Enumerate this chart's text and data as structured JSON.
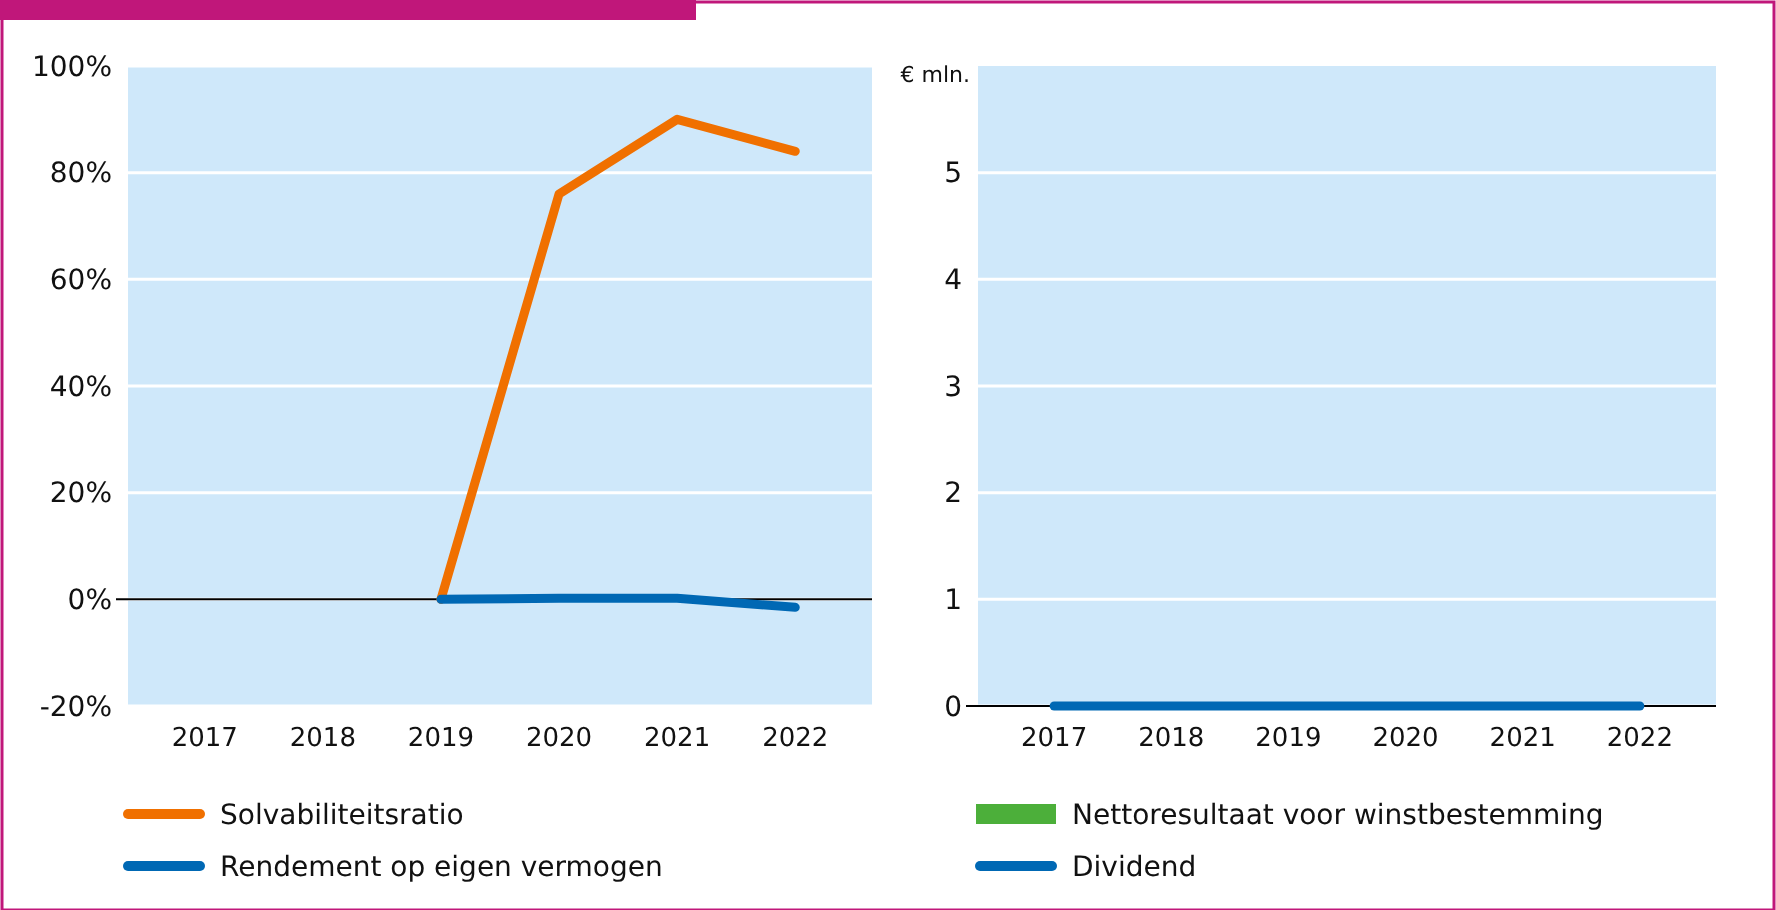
{
  "chart_data": [
    {
      "type": "line",
      "categories": [
        "2017",
        "2018",
        "2019",
        "2020",
        "2021",
        "2022"
      ],
      "ylim": [
        -20,
        100
      ],
      "yticks": [
        {
          "value": -20,
          "label": "-20%"
        },
        {
          "value": 0,
          "label": "0%"
        },
        {
          "value": 20,
          "label": "20%"
        },
        {
          "value": 40,
          "label": "40%"
        },
        {
          "value": 60,
          "label": "60%"
        },
        {
          "value": 80,
          "label": "80%"
        },
        {
          "value": 100,
          "label": "100%"
        }
      ],
      "grid": "y",
      "legend": "bottom",
      "series": [
        {
          "name": "Solvabiliteitsratio",
          "color": "#f07000",
          "values": [
            null,
            null,
            0,
            76,
            90,
            84
          ]
        },
        {
          "name": "Rendement op eigen vermogen",
          "color": "#0068b4",
          "values": [
            null,
            null,
            0,
            0.2,
            0.2,
            -1.5
          ]
        }
      ]
    },
    {
      "type": "line",
      "ylabel": "€ mln.",
      "categories": [
        "2017",
        "2018",
        "2019",
        "2020",
        "2021",
        "2022"
      ],
      "ylim": [
        0,
        6
      ],
      "yticks": [
        0,
        1,
        2,
        3,
        4,
        5
      ],
      "grid": "y",
      "legend": "bottom",
      "series": [
        {
          "name": "Nettoresultaat voor winstbestemming",
          "type": "bar",
          "color": "#4caf3a",
          "values": [
            0,
            0,
            0,
            0,
            0,
            0
          ]
        },
        {
          "name": "Dividend",
          "color": "#0068b4",
          "values": [
            0,
            0,
            0,
            0,
            0,
            0
          ]
        }
      ]
    }
  ]
}
